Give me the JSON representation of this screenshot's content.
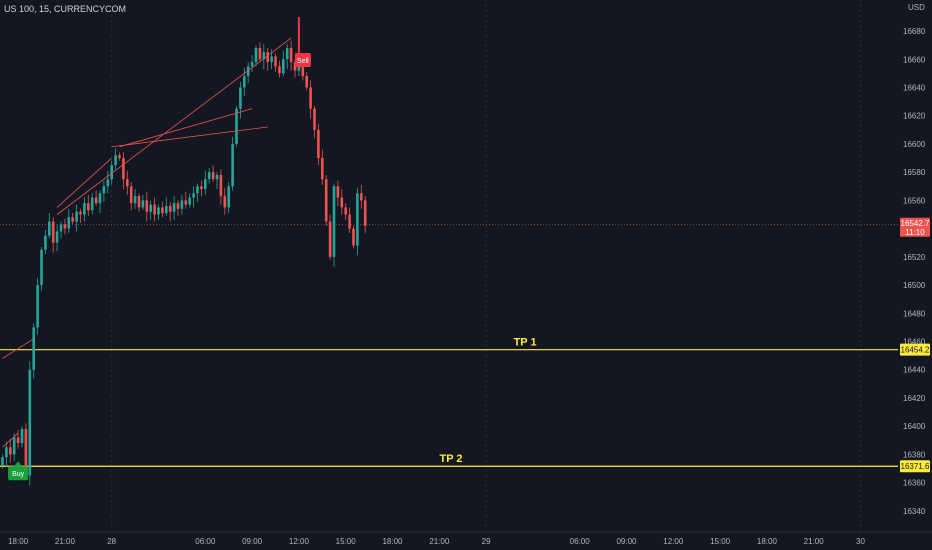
{
  "header": {
    "symbol_line": "US 100, 15, CURRENCYCOM",
    "currency": "USD"
  },
  "chart_data": {
    "type": "candlestick",
    "ylim": [
      16325,
      16702
    ],
    "y_ticks": [
      16340,
      16360,
      16380,
      16400,
      16420,
      16440,
      16460,
      16480,
      16500,
      16520,
      16540,
      16560,
      16580,
      16600,
      16620,
      16640,
      16660,
      16680
    ],
    "x_ticks": [
      {
        "i": 4,
        "label": "18:00"
      },
      {
        "i": 16,
        "label": "21:00"
      },
      {
        "i": 28,
        "label": "28"
      },
      {
        "i": 52,
        "label": "06:00"
      },
      {
        "i": 64,
        "label": "09:00"
      },
      {
        "i": 76,
        "label": "12:00"
      },
      {
        "i": 88,
        "label": "15:00"
      },
      {
        "i": 100,
        "label": "18:00"
      },
      {
        "i": 112,
        "label": "21:00"
      },
      {
        "i": 124,
        "label": "29"
      },
      {
        "i": 148,
        "label": "06:00"
      },
      {
        "i": 160,
        "label": "09:00"
      },
      {
        "i": 172,
        "label": "12:00"
      },
      {
        "i": 184,
        "label": "15:00"
      },
      {
        "i": 196,
        "label": "18:00"
      },
      {
        "i": 208,
        "label": "21:00"
      },
      {
        "i": 220,
        "label": "30"
      },
      {
        "i": 244,
        "label": "06:00"
      }
    ],
    "closes": [
      16378,
      16385,
      16380,
      16392,
      16388,
      16398,
      16365,
      16440,
      16470,
      16500,
      16525,
      16535,
      16545,
      16530,
      16538,
      16543,
      16540,
      16548,
      16545,
      16552,
      16550,
      16558,
      16553,
      16562,
      16558,
      16565,
      16570,
      16575,
      16585,
      16592,
      16590,
      16575,
      16570,
      16558,
      16563,
      16555,
      16560,
      16552,
      16557,
      16550,
      16555,
      16551,
      16556,
      16552,
      16558,
      16554,
      16560,
      16557,
      16562,
      16565,
      16570,
      16568,
      16575,
      16580,
      16575,
      16578,
      16563,
      16555,
      16570,
      16600,
      16625,
      16640,
      16648,
      16655,
      16658,
      16668,
      16660,
      16665,
      16658,
      16662,
      16655,
      16650,
      16660,
      16668,
      16658,
      16652,
      16655,
      16648,
      16640,
      16625,
      16610,
      16590,
      16575,
      16545,
      16520,
      16570,
      16562,
      16555,
      16550,
      16540,
      16528,
      16565,
      16560,
      16542
    ],
    "current_price": 16542.7,
    "price_label": "16542.7",
    "countdown_label": "11:10",
    "tp_levels": [
      {
        "name": "TP 1",
        "price": 16454.2,
        "label": "16454.2"
      },
      {
        "name": "TP 2",
        "price": 16371.6,
        "label": "16371.6"
      }
    ],
    "signals": [
      {
        "type": "buy",
        "label": "Buy",
        "index": 4
      },
      {
        "type": "sell",
        "label": "Sell",
        "index": 76
      }
    ],
    "trend_lines": [
      {
        "from": [
          14,
          16550
        ],
        "to": [
          74,
          16675
        ]
      },
      {
        "from": [
          30,
          16598
        ],
        "to": [
          64,
          16625
        ]
      },
      {
        "from": [
          14,
          16555
        ],
        "to": [
          28,
          16590
        ]
      },
      {
        "from": [
          28,
          16598
        ],
        "to": [
          68,
          16612
        ]
      },
      {
        "from": [
          0,
          16448
        ],
        "to": [
          8,
          16462
        ]
      },
      {
        "from": [
          0,
          16385
        ],
        "to": [
          4,
          16395
        ]
      }
    ],
    "colors": {
      "bull": "#26a69a",
      "bear": "#ef5350",
      "tp_line": "#ffeb3b",
      "trend": "#ef5350",
      "buy": "#1b9e3e",
      "sell": "#f23645",
      "background": "#131722"
    }
  }
}
